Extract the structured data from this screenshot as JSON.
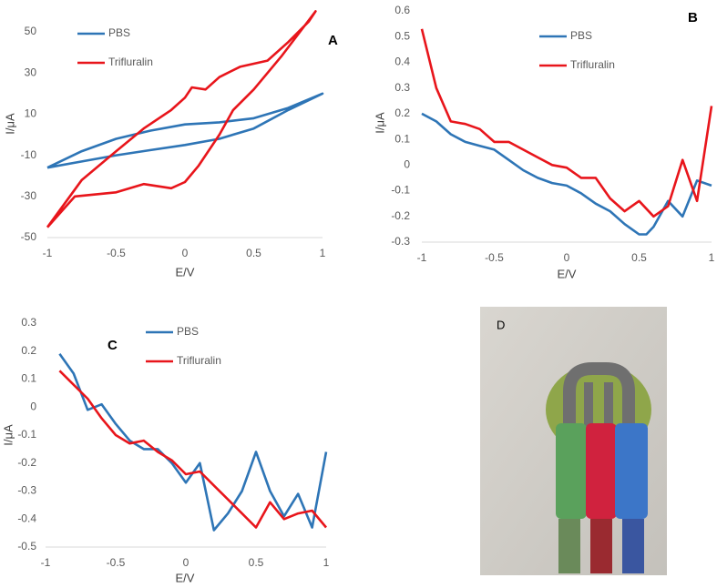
{
  "chart_data": [
    {
      "type": "line",
      "label": "A",
      "xlabel": "E/V",
      "ylabel": "I/μA",
      "xlim": [
        -1,
        1
      ],
      "xticks": [
        -1,
        -0.5,
        0,
        0.5,
        1
      ],
      "ylim": [
        -50,
        60
      ],
      "yticks": [
        -50,
        -30,
        -10,
        10,
        30,
        50
      ],
      "series": [
        {
          "name": "PBS",
          "color": "#2e75b6",
          "x": [
            -1,
            -0.75,
            -0.5,
            -0.25,
            0,
            0.25,
            0.5,
            0.75,
            1,
            0.75,
            0.5,
            0.25,
            0,
            -0.25,
            -0.5,
            -0.75,
            -1
          ],
          "values": [
            -16,
            -8,
            -2,
            2,
            5,
            6,
            8,
            13,
            20,
            12,
            3,
            -2,
            -5,
            -7.5,
            -10,
            -13,
            -16
          ]
        },
        {
          "name": "Trifluralin",
          "color": "#e8151b",
          "x": [
            -1,
            -0.8,
            -0.5,
            -0.3,
            -0.1,
            0,
            0.1,
            0.25,
            0.35,
            0.5,
            0.7,
            0.95,
            0.9,
            0.75,
            0.6,
            0.4,
            0.25,
            0.15,
            0.05,
            0,
            -0.1,
            -0.3,
            -0.5,
            -0.75,
            -1
          ],
          "values": [
            -45,
            -30,
            -28,
            -24,
            -26,
            -23,
            -15,
            0,
            12,
            22,
            38,
            60,
            55,
            45,
            36,
            33,
            28,
            22,
            23,
            18,
            12,
            3,
            -8,
            -22,
            -45
          ]
        }
      ]
    },
    {
      "type": "line",
      "label": "B",
      "xlabel": "E/V",
      "ylabel": "I/μA",
      "xlim": [
        -1,
        1
      ],
      "xticks": [
        -1,
        -0.5,
        0,
        0.5,
        1
      ],
      "ylim": [
        -0.3,
        0.6
      ],
      "yticks": [
        -0.3,
        -0.2,
        -0.1,
        0,
        0.1,
        0.2,
        0.3,
        0.4,
        0.5,
        0.6
      ],
      "series": [
        {
          "name": "PBS",
          "color": "#2e75b6",
          "x": [
            -1,
            -0.9,
            -0.8,
            -0.7,
            -0.6,
            -0.5,
            -0.4,
            -0.3,
            -0.2,
            -0.1,
            0,
            0.1,
            0.2,
            0.3,
            0.4,
            0.5,
            0.55,
            0.6,
            0.7,
            0.8,
            0.9,
            1
          ],
          "values": [
            0.2,
            0.17,
            0.12,
            0.09,
            0.075,
            0.06,
            0.02,
            -0.02,
            -0.05,
            -0.07,
            -0.08,
            -0.11,
            -0.15,
            -0.18,
            -0.23,
            -0.27,
            -0.27,
            -0.24,
            -0.14,
            -0.2,
            -0.06,
            -0.08
          ]
        },
        {
          "name": "Trifluralin",
          "color": "#e8151b",
          "x": [
            -1,
            -0.9,
            -0.8,
            -0.7,
            -0.6,
            -0.5,
            -0.4,
            -0.3,
            -0.2,
            -0.1,
            0,
            0.1,
            0.2,
            0.3,
            0.4,
            0.5,
            0.6,
            0.7,
            0.8,
            0.9,
            1
          ],
          "values": [
            0.53,
            0.3,
            0.17,
            0.16,
            0.14,
            0.09,
            0.09,
            0.06,
            0.03,
            0,
            -0.01,
            -0.05,
            -0.05,
            -0.13,
            -0.18,
            -0.14,
            -0.2,
            -0.16,
            0.02,
            -0.14,
            0.23
          ]
        }
      ]
    },
    {
      "type": "line",
      "label": "C",
      "xlabel": "E/V",
      "ylabel": "I/μA",
      "xlim": [
        -1,
        1
      ],
      "xticks": [
        -1,
        -0.5,
        0,
        0.5,
        1
      ],
      "ylim": [
        -0.5,
        0.3
      ],
      "yticks": [
        -0.5,
        -0.4,
        -0.3,
        -0.2,
        -0.1,
        0,
        0.1,
        0.2,
        0.3
      ],
      "series": [
        {
          "name": "PBS",
          "color": "#2e75b6",
          "x": [
            -0.9,
            -0.8,
            -0.7,
            -0.6,
            -0.5,
            -0.4,
            -0.3,
            -0.2,
            -0.1,
            0,
            0.1,
            0.2,
            0.3,
            0.4,
            0.5,
            0.6,
            0.7,
            0.8,
            0.9,
            1
          ],
          "values": [
            0.19,
            0.12,
            -0.01,
            0.01,
            -0.06,
            -0.12,
            -0.15,
            -0.15,
            -0.2,
            -0.27,
            -0.2,
            -0.44,
            -0.38,
            -0.3,
            -0.16,
            -0.3,
            -0.39,
            -0.31,
            -0.43,
            -0.16
          ]
        },
        {
          "name": "Trifluralin",
          "color": "#e8151b",
          "x": [
            -0.9,
            -0.8,
            -0.7,
            -0.6,
            -0.5,
            -0.4,
            -0.3,
            -0.2,
            -0.1,
            0,
            0.1,
            0.2,
            0.3,
            0.4,
            0.5,
            0.6,
            0.7,
            0.8,
            0.9,
            1
          ],
          "values": [
            0.13,
            0.08,
            0.03,
            -0.04,
            -0.1,
            -0.13,
            -0.12,
            -0.16,
            -0.19,
            -0.24,
            -0.23,
            -0.28,
            -0.33,
            -0.38,
            -0.43,
            -0.34,
            -0.4,
            -0.38,
            -0.37,
            -0.43
          ]
        }
      ]
    }
  ],
  "photo": {
    "label": "D"
  }
}
